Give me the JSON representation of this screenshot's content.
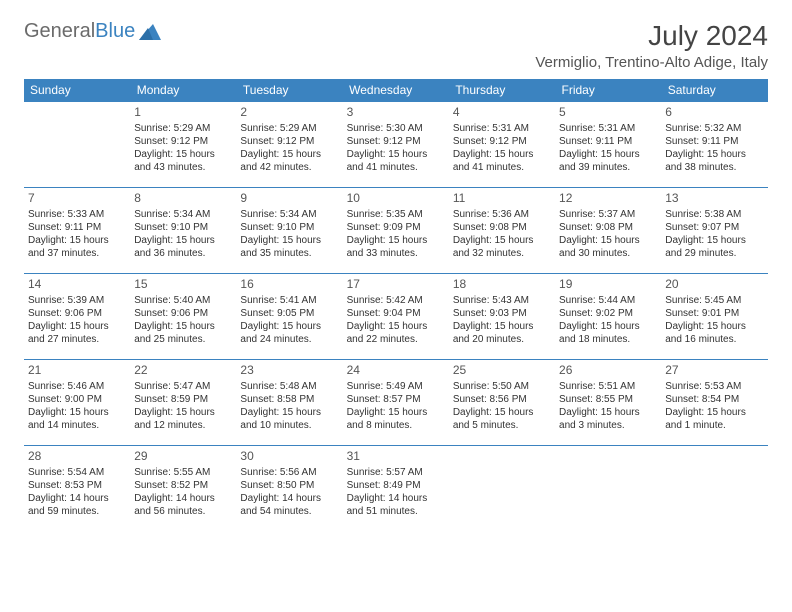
{
  "brand": {
    "part1": "General",
    "part2": "Blue"
  },
  "title": "July 2024",
  "location": "Vermiglio, Trentino-Alto Adige, Italy",
  "colors": {
    "header_bg": "#3b83c0",
    "header_text": "#ffffff",
    "border": "#3b83c0",
    "text": "#333333",
    "title_text": "#444444",
    "logo_gray": "#6b6b6b",
    "logo_blue": "#3b83c0"
  },
  "day_names": [
    "Sunday",
    "Monday",
    "Tuesday",
    "Wednesday",
    "Thursday",
    "Friday",
    "Saturday"
  ],
  "weeks": [
    [
      null,
      {
        "n": "1",
        "sr": "5:29 AM",
        "ss": "9:12 PM",
        "dl": "15 hours and 43 minutes."
      },
      {
        "n": "2",
        "sr": "5:29 AM",
        "ss": "9:12 PM",
        "dl": "15 hours and 42 minutes."
      },
      {
        "n": "3",
        "sr": "5:30 AM",
        "ss": "9:12 PM",
        "dl": "15 hours and 41 minutes."
      },
      {
        "n": "4",
        "sr": "5:31 AM",
        "ss": "9:12 PM",
        "dl": "15 hours and 41 minutes."
      },
      {
        "n": "5",
        "sr": "5:31 AM",
        "ss": "9:11 PM",
        "dl": "15 hours and 39 minutes."
      },
      {
        "n": "6",
        "sr": "5:32 AM",
        "ss": "9:11 PM",
        "dl": "15 hours and 38 minutes."
      }
    ],
    [
      {
        "n": "7",
        "sr": "5:33 AM",
        "ss": "9:11 PM",
        "dl": "15 hours and 37 minutes."
      },
      {
        "n": "8",
        "sr": "5:34 AM",
        "ss": "9:10 PM",
        "dl": "15 hours and 36 minutes."
      },
      {
        "n": "9",
        "sr": "5:34 AM",
        "ss": "9:10 PM",
        "dl": "15 hours and 35 minutes."
      },
      {
        "n": "10",
        "sr": "5:35 AM",
        "ss": "9:09 PM",
        "dl": "15 hours and 33 minutes."
      },
      {
        "n": "11",
        "sr": "5:36 AM",
        "ss": "9:08 PM",
        "dl": "15 hours and 32 minutes."
      },
      {
        "n": "12",
        "sr": "5:37 AM",
        "ss": "9:08 PM",
        "dl": "15 hours and 30 minutes."
      },
      {
        "n": "13",
        "sr": "5:38 AM",
        "ss": "9:07 PM",
        "dl": "15 hours and 29 minutes."
      }
    ],
    [
      {
        "n": "14",
        "sr": "5:39 AM",
        "ss": "9:06 PM",
        "dl": "15 hours and 27 minutes."
      },
      {
        "n": "15",
        "sr": "5:40 AM",
        "ss": "9:06 PM",
        "dl": "15 hours and 25 minutes."
      },
      {
        "n": "16",
        "sr": "5:41 AM",
        "ss": "9:05 PM",
        "dl": "15 hours and 24 minutes."
      },
      {
        "n": "17",
        "sr": "5:42 AM",
        "ss": "9:04 PM",
        "dl": "15 hours and 22 minutes."
      },
      {
        "n": "18",
        "sr": "5:43 AM",
        "ss": "9:03 PM",
        "dl": "15 hours and 20 minutes."
      },
      {
        "n": "19",
        "sr": "5:44 AM",
        "ss": "9:02 PM",
        "dl": "15 hours and 18 minutes."
      },
      {
        "n": "20",
        "sr": "5:45 AM",
        "ss": "9:01 PM",
        "dl": "15 hours and 16 minutes."
      }
    ],
    [
      {
        "n": "21",
        "sr": "5:46 AM",
        "ss": "9:00 PM",
        "dl": "15 hours and 14 minutes."
      },
      {
        "n": "22",
        "sr": "5:47 AM",
        "ss": "8:59 PM",
        "dl": "15 hours and 12 minutes."
      },
      {
        "n": "23",
        "sr": "5:48 AM",
        "ss": "8:58 PM",
        "dl": "15 hours and 10 minutes."
      },
      {
        "n": "24",
        "sr": "5:49 AM",
        "ss": "8:57 PM",
        "dl": "15 hours and 8 minutes."
      },
      {
        "n": "25",
        "sr": "5:50 AM",
        "ss": "8:56 PM",
        "dl": "15 hours and 5 minutes."
      },
      {
        "n": "26",
        "sr": "5:51 AM",
        "ss": "8:55 PM",
        "dl": "15 hours and 3 minutes."
      },
      {
        "n": "27",
        "sr": "5:53 AM",
        "ss": "8:54 PM",
        "dl": "15 hours and 1 minute."
      }
    ],
    [
      {
        "n": "28",
        "sr": "5:54 AM",
        "ss": "8:53 PM",
        "dl": "14 hours and 59 minutes."
      },
      {
        "n": "29",
        "sr": "5:55 AM",
        "ss": "8:52 PM",
        "dl": "14 hours and 56 minutes."
      },
      {
        "n": "30",
        "sr": "5:56 AM",
        "ss": "8:50 PM",
        "dl": "14 hours and 54 minutes."
      },
      {
        "n": "31",
        "sr": "5:57 AM",
        "ss": "8:49 PM",
        "dl": "14 hours and 51 minutes."
      },
      null,
      null,
      null
    ]
  ],
  "labels": {
    "sunrise": "Sunrise:",
    "sunset": "Sunset:",
    "daylight": "Daylight:"
  }
}
